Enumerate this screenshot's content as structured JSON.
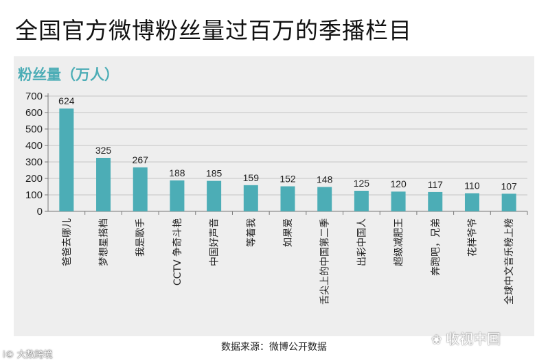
{
  "page_title": "全国官方微博粉丝量过百万的季播栏目",
  "source_text": "数据来源：微博公开数据",
  "watermark_left": "大数跨境",
  "watermark_left_prefix": "i©",
  "watermark_right": "收视中国",
  "chart_data": {
    "type": "bar",
    "title": "粉丝量（万人）",
    "xlabel": "",
    "ylabel": "",
    "ylim": [
      0,
      700
    ],
    "yticks": [
      0,
      100,
      200,
      300,
      400,
      500,
      600,
      700
    ],
    "grid": true,
    "legend": "none",
    "bar_color": "#4cadb6",
    "categories": [
      "爸爸去哪儿",
      "梦想星搭档",
      "我是歌手",
      "CCTV 争奇斗艳",
      "中国好声音",
      "等着我",
      "如果爱",
      "舌尖上的中国第二季",
      "出彩中国人",
      "超级减肥王",
      "奔跑吧，兄弟",
      "花样爷爷",
      "全球中文音乐榜上榜"
    ],
    "values": [
      624,
      325,
      267,
      188,
      185,
      159,
      152,
      148,
      125,
      120,
      117,
      110,
      107
    ]
  }
}
